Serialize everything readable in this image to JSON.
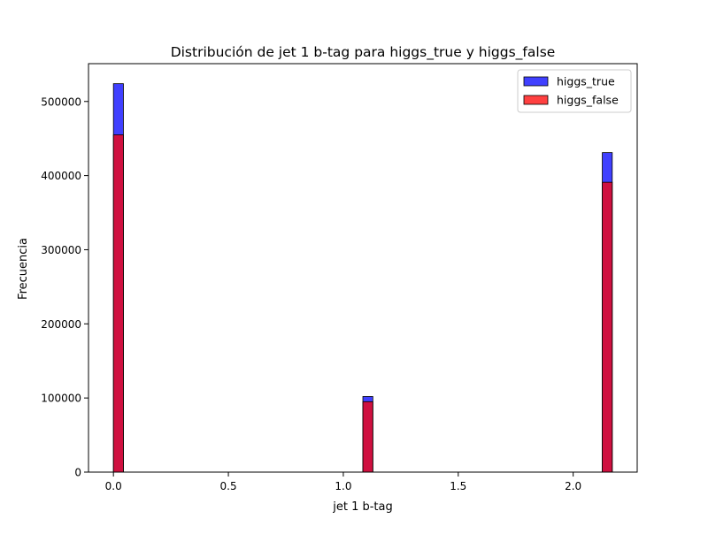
{
  "chart_data": {
    "type": "bar",
    "title": "Distribución de jet 1 b-tag para higgs_true y higgs_false",
    "xlabel": "jet 1 b-tag",
    "ylabel": "Frecuencia",
    "xlim": [
      -0.1085,
      2.2785
    ],
    "ylim": [
      0,
      551000
    ],
    "xticks": [
      0.0,
      0.5,
      1.0,
      1.5,
      2.0
    ],
    "xtick_labels": [
      "0.0",
      "0.5",
      "1.0",
      "1.5",
      "2.0"
    ],
    "yticks": [
      0,
      100000,
      200000,
      300000,
      400000,
      500000
    ],
    "ytick_labels": [
      "0",
      "100000",
      "200000",
      "300000",
      "400000",
      "500000"
    ],
    "bin_width": 0.0434,
    "bins": [
      {
        "x0": 0.0,
        "x1": 0.0434
      },
      {
        "x0": 1.0851,
        "x1": 1.1285
      },
      {
        "x0": 2.1266,
        "x1": 2.17
      }
    ],
    "series": [
      {
        "name": "higgs_true",
        "color": "#0000ff",
        "values": [
          524000,
          102000,
          431000
        ]
      },
      {
        "name": "higgs_false",
        "color": "#ff0000",
        "values": [
          455000,
          95000,
          391000
        ]
      }
    ],
    "overlap_color": "#cc0a3a",
    "legend": {
      "position": "top-right",
      "entries": [
        "higgs_true",
        "higgs_false"
      ]
    },
    "grid": false
  }
}
